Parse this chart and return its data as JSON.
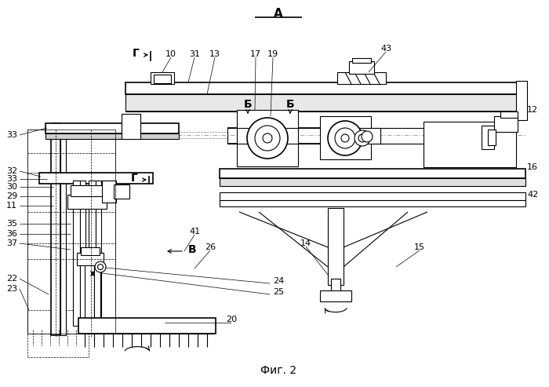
{
  "bg_color": "#ffffff",
  "line_color": "#000000",
  "fig_caption": "Фиг. 2",
  "label_A": "А",
  "label_B": "Б",
  "label_G": "Г",
  "label_V": "В"
}
